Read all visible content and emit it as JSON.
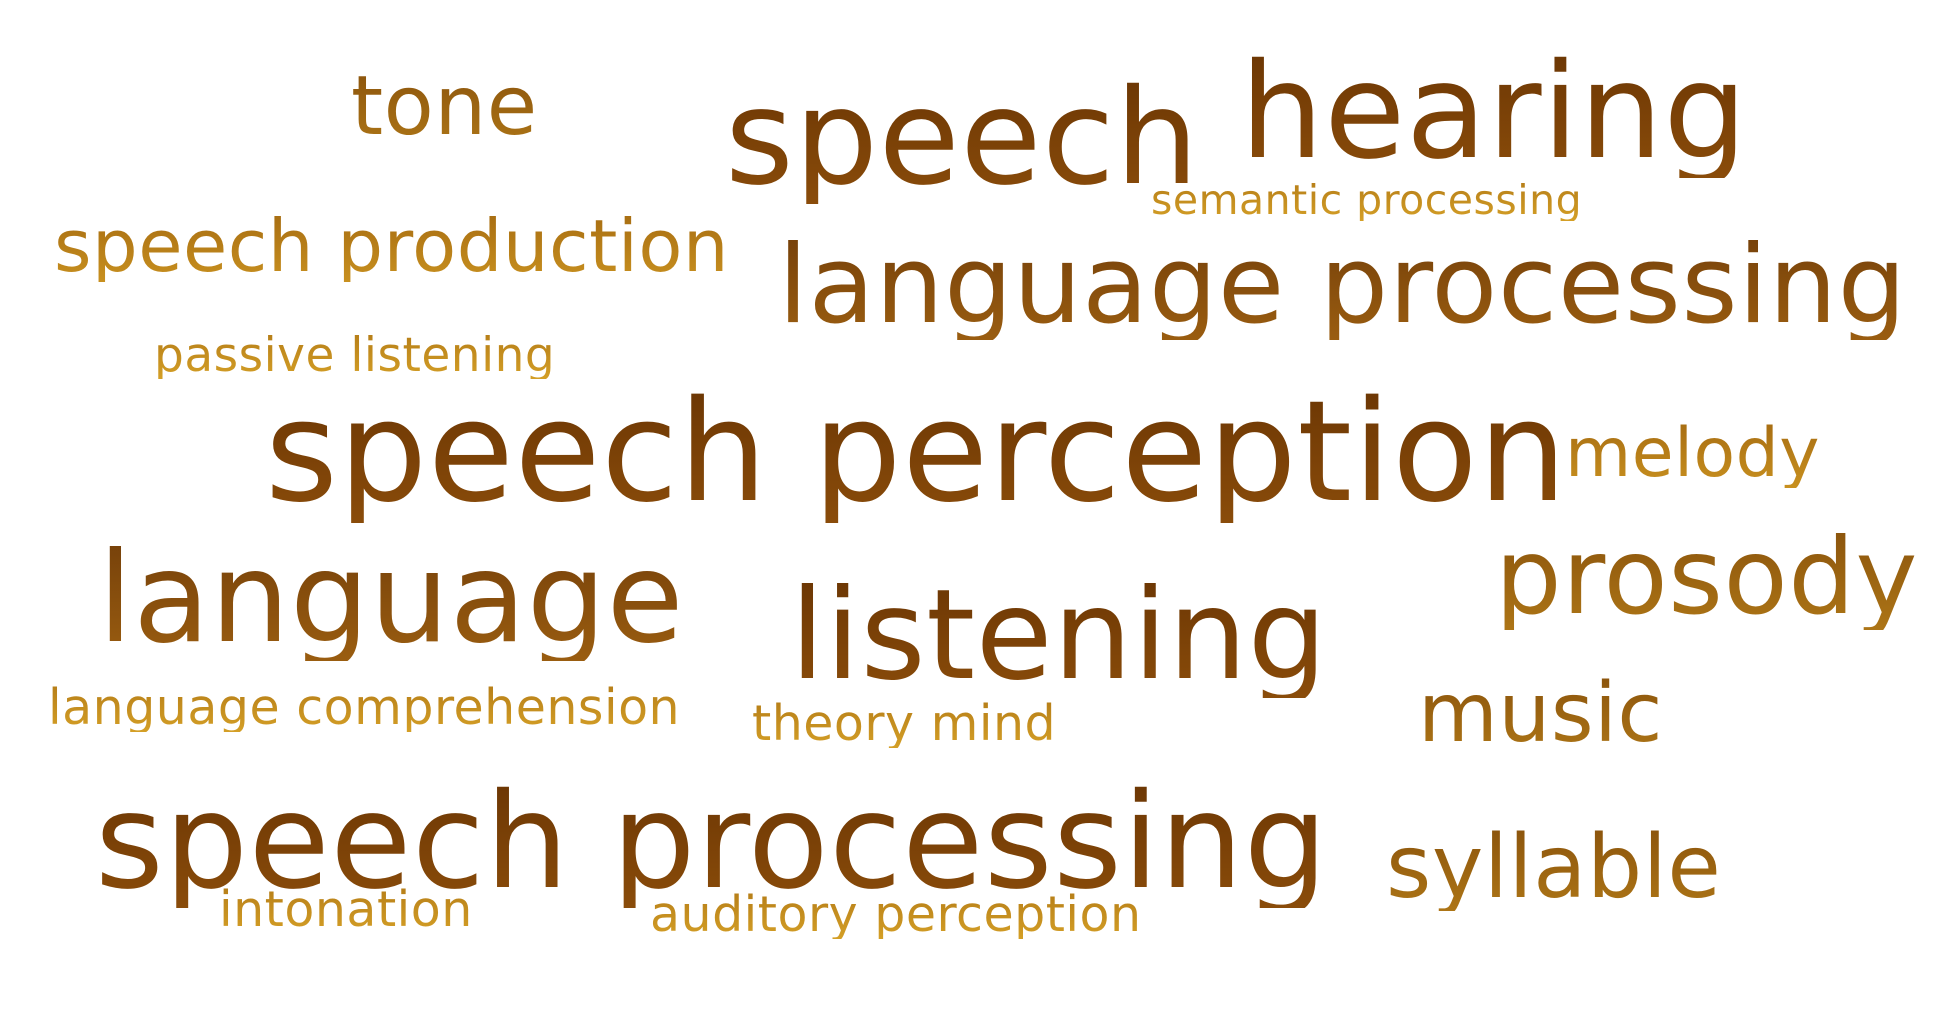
{
  "word_cloud": {
    "colors": {
      "darkest": "#6b3604",
      "dark": "#8a4c0a",
      "medium": "#ad7516",
      "light": "#c8901f",
      "lightest": "#d49f26",
      "background": "#ffffff"
    },
    "words": {
      "tone": "tone",
      "speech": "speech",
      "hearing": "hearing",
      "semantic_processing": "semantic processing",
      "speech_production": "speech production",
      "language_processing": "language processing",
      "passive_listening": "passive listening",
      "speech_perception": "speech perception",
      "melody": "melody",
      "prosody": "prosody",
      "language": "language",
      "listening": "listening",
      "language_comprehension": "language comprehension",
      "theory_mind": "theory mind",
      "music": "music",
      "speech_processing": "speech processing",
      "syllable": "syllable",
      "intonation": "intonation",
      "auditory_perception": "auditory perception"
    }
  }
}
